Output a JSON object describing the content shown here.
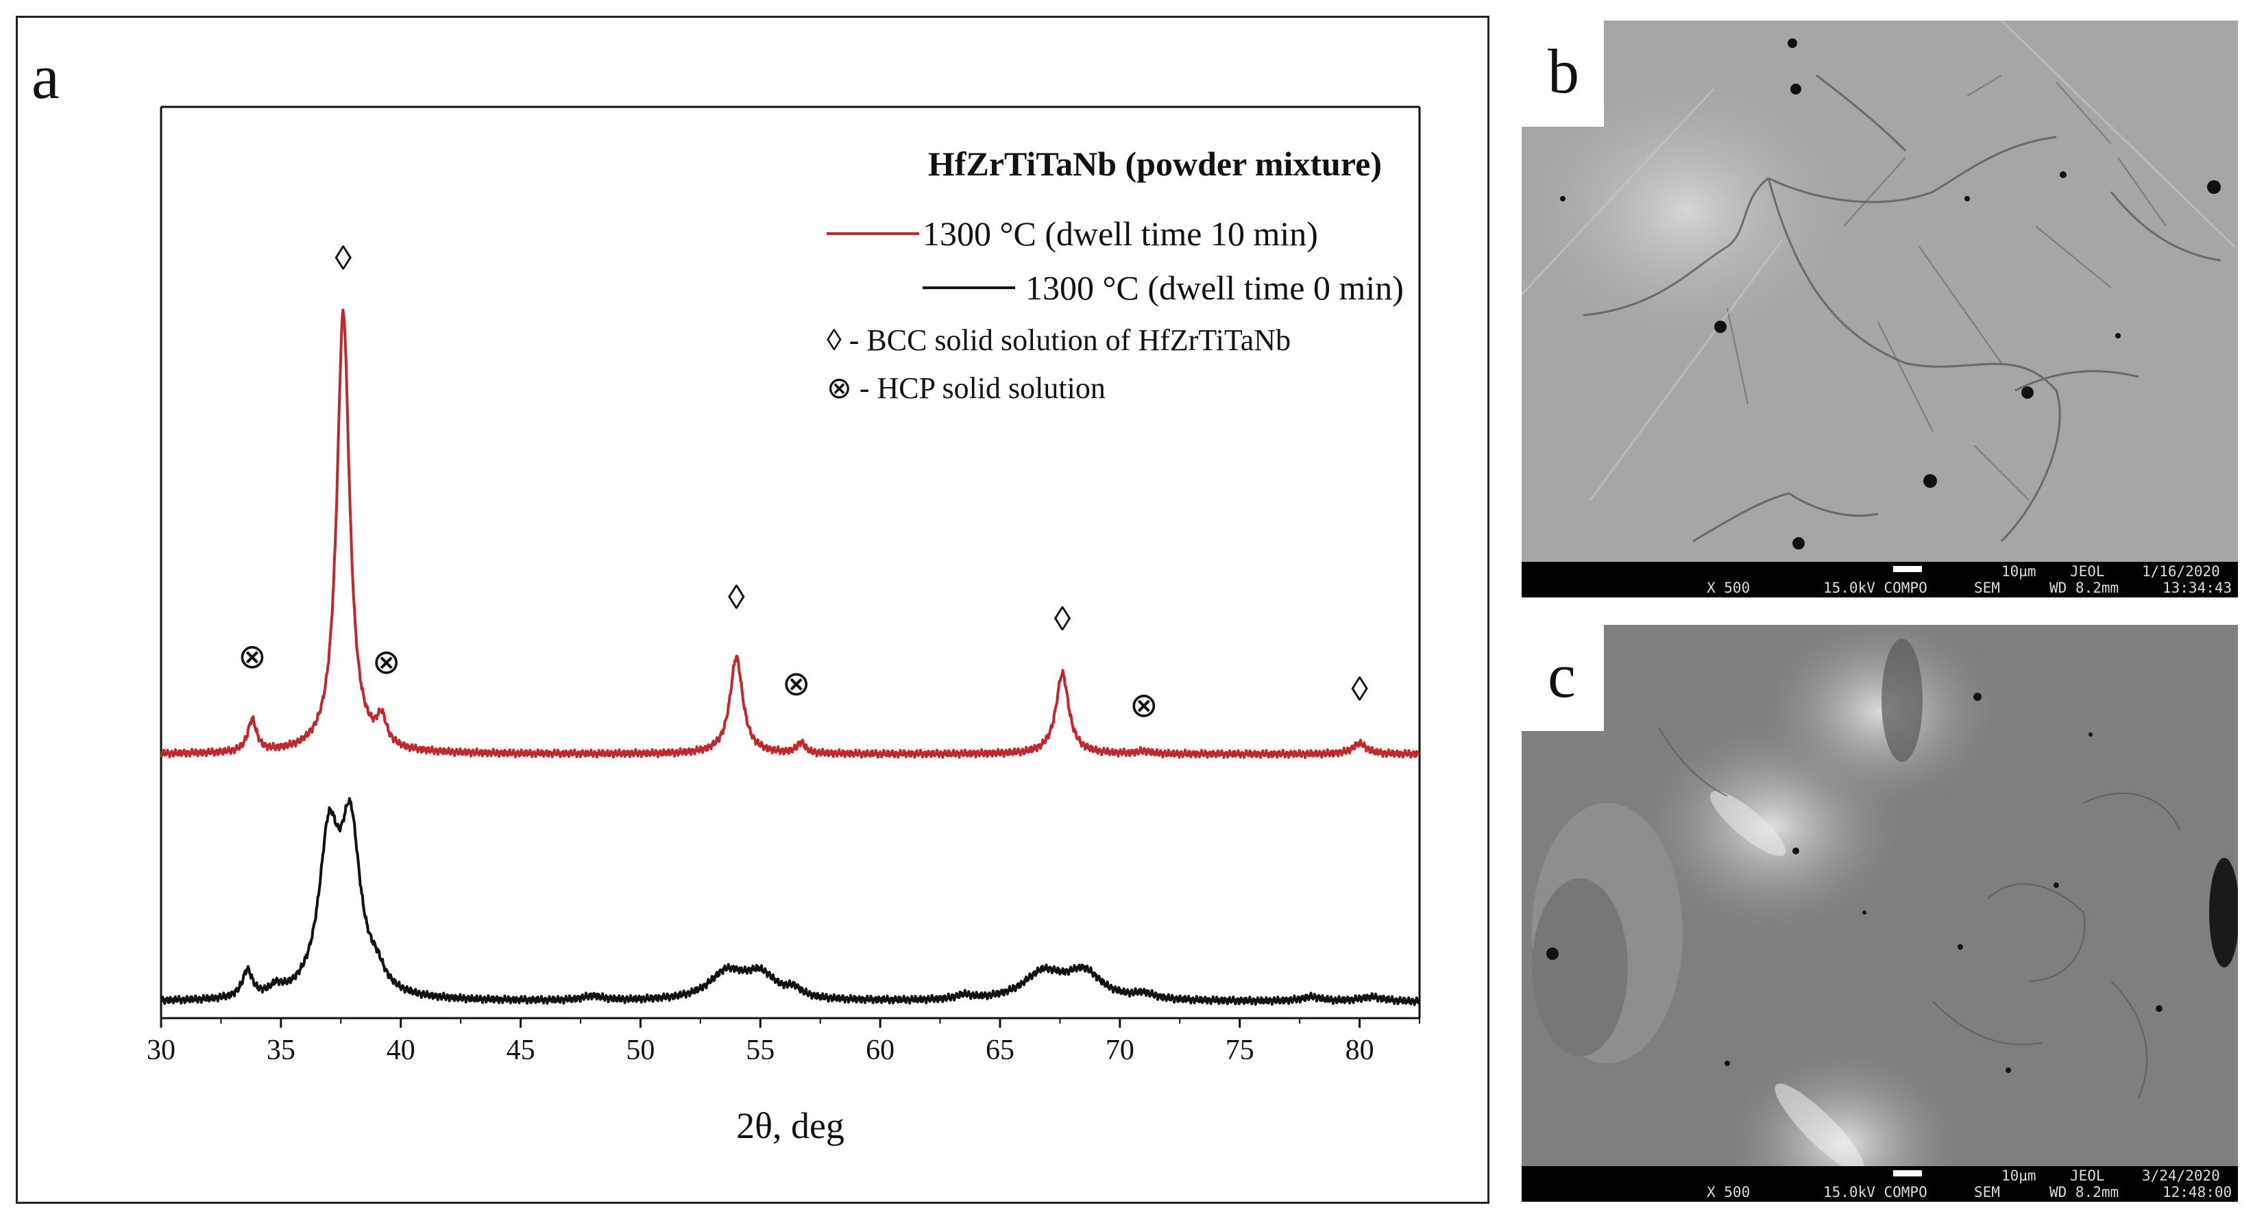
{
  "panels": {
    "a": {
      "letter": "a"
    },
    "b": {
      "letter": "b",
      "scale_bar": "10µm",
      "vendor": "JEOL",
      "date": "1/16/2020",
      "mag": "X 500",
      "kv_mode": "15.0kV COMPO",
      "detector": "SEM",
      "wd": "WD 8.2mm",
      "time": "13:34:43"
    },
    "c": {
      "letter": "c",
      "scale_bar": "10µm",
      "vendor": "JEOL",
      "date": "3/24/2020",
      "mag": "X 500",
      "kv_mode": "15.0kV COMPO",
      "detector": "SEM",
      "wd": "WD 8.2mm",
      "time": "12:48:00"
    }
  },
  "chart_data": {
    "type": "line",
    "title": "HfZrTiTaNb (powder mixture)",
    "xlabel": "2θ, deg",
    "ylabel": "",
    "xlim": [
      30,
      82.5
    ],
    "xticks": [
      30,
      35,
      40,
      45,
      50,
      55,
      60,
      65,
      70,
      75,
      80
    ],
    "y_ticks_shown": false,
    "legend_position": "top-right",
    "series": [
      {
        "name": "1300 °C (dwell time 10 min)",
        "color": "#c0282d",
        "baseline": 0.48,
        "peaks": [
          {
            "x": 33.8,
            "h": 0.06,
            "w": 0.22
          },
          {
            "x": 37.6,
            "h": 0.82,
            "w": 0.32
          },
          {
            "x": 39.2,
            "h": 0.05,
            "w": 0.25
          },
          {
            "x": 54.0,
            "h": 0.18,
            "w": 0.32
          },
          {
            "x": 56.7,
            "h": 0.02,
            "w": 0.2
          },
          {
            "x": 67.6,
            "h": 0.15,
            "w": 0.32
          },
          {
            "x": 71.0,
            "h": 0.005,
            "w": 0.3
          },
          {
            "x": 80.0,
            "h": 0.02,
            "w": 0.35
          }
        ]
      },
      {
        "name": "1300 °C (dwell time 0 min)",
        "color": "#111111",
        "baseline": 0.02,
        "peaks": [
          {
            "x": 33.6,
            "h": 0.05,
            "w": 0.25
          },
          {
            "x": 34.8,
            "h": 0.015,
            "w": 0.3
          },
          {
            "x": 37.0,
            "h": 0.28,
            "w": 0.5
          },
          {
            "x": 37.9,
            "h": 0.3,
            "w": 0.5
          },
          {
            "x": 39.0,
            "h": 0.03,
            "w": 0.4
          },
          {
            "x": 48.0,
            "h": 0.008,
            "w": 0.5
          },
          {
            "x": 53.6,
            "h": 0.05,
            "w": 0.9
          },
          {
            "x": 55.0,
            "h": 0.045,
            "w": 0.8
          },
          {
            "x": 56.4,
            "h": 0.015,
            "w": 0.4
          },
          {
            "x": 63.5,
            "h": 0.008,
            "w": 0.4
          },
          {
            "x": 66.8,
            "h": 0.05,
            "w": 1.0
          },
          {
            "x": 68.5,
            "h": 0.05,
            "w": 0.9
          },
          {
            "x": 71.0,
            "h": 0.01,
            "w": 0.5
          },
          {
            "x": 78.0,
            "h": 0.008,
            "w": 0.5
          },
          {
            "x": 80.5,
            "h": 0.008,
            "w": 0.6
          }
        ]
      }
    ],
    "markers": [
      {
        "symbol": "◊",
        "phase": "bcc",
        "x": 37.6,
        "y": 1.38
      },
      {
        "symbol": "◊",
        "phase": "bcc",
        "x": 54.0,
        "y": 0.75
      },
      {
        "symbol": "◊",
        "phase": "bcc",
        "x": 67.6,
        "y": 0.71
      },
      {
        "symbol": "◊",
        "phase": "bcc",
        "x": 80.0,
        "y": 0.58
      },
      {
        "symbol": "⊗",
        "phase": "hcp",
        "x": 33.8,
        "y": 0.64
      },
      {
        "symbol": "⊗",
        "phase": "hcp",
        "x": 39.4,
        "y": 0.63
      },
      {
        "symbol": "⊗",
        "phase": "hcp",
        "x": 56.5,
        "y": 0.59
      },
      {
        "symbol": "⊗",
        "phase": "hcp",
        "x": 71.0,
        "y": 0.55
      }
    ],
    "legend_notes": [
      "◊ - BCC solid solution of HfZrTiTaNb",
      "⊗ - HCP solid solution"
    ]
  }
}
